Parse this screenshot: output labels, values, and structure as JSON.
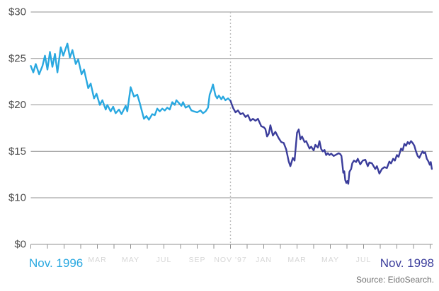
{
  "source": {
    "text": "Source: EidoSearch."
  },
  "colors": {
    "line_before": "#29A8E0",
    "line_after": "#3B3D9B",
    "grid": "#919191",
    "divider": "#bcbcbc",
    "y_label": "#4d4d4d",
    "x_minor_label": "#d6d6d6",
    "source_text": "#6e6e6e",
    "background": "#ffffff"
  },
  "chart_data": {
    "type": "line",
    "title": "",
    "xlabel": "",
    "ylabel": "",
    "grid": true,
    "ylim": [
      0,
      30
    ],
    "y_scale_note": "axis skips $5: equal spacing for $0,$10,$15,$20,$25,$30",
    "y_ticks": [
      {
        "label": "$30",
        "value": 30
      },
      {
        "label": "$25",
        "value": 25
      },
      {
        "label": "$20",
        "value": 20
      },
      {
        "label": "$15",
        "value": 15
      },
      {
        "label": "$10",
        "value": 10
      },
      {
        "label": "$0",
        "value": 0
      }
    ],
    "x_axis": {
      "months_span": 24,
      "tick_every_months": 1,
      "start_label": "Nov. 1996",
      "end_label": "Nov. 1998",
      "minor_labels": [
        {
          "label": "MAR",
          "month": 4
        },
        {
          "label": "MAY",
          "month": 6
        },
        {
          "label": "JUL",
          "month": 8
        },
        {
          "label": "SEP",
          "month": 10
        },
        {
          "label": "NOV '97",
          "month": 12
        },
        {
          "label": "JAN",
          "month": 14
        },
        {
          "label": "MAR",
          "month": 16
        },
        {
          "label": "MAY",
          "month": 18
        },
        {
          "label": "JUL",
          "month": 20
        }
      ]
    },
    "divider": {
      "month": 12,
      "style": "dashed"
    },
    "series": [
      {
        "name": "before_divider",
        "period": "Nov. 1996 - Nov. 1997",
        "color_key": "line_before",
        "points": [
          [
            0.0,
            24.2
          ],
          [
            0.15,
            23.5
          ],
          [
            0.3,
            24.4
          ],
          [
            0.5,
            23.3
          ],
          [
            0.7,
            24.2
          ],
          [
            0.85,
            25.3
          ],
          [
            1.0,
            23.8
          ],
          [
            1.15,
            25.7
          ],
          [
            1.3,
            24.1
          ],
          [
            1.45,
            25.5
          ],
          [
            1.6,
            23.5
          ],
          [
            1.8,
            26.2
          ],
          [
            1.95,
            25.3
          ],
          [
            2.2,
            26.6
          ],
          [
            2.35,
            25.1
          ],
          [
            2.5,
            25.9
          ],
          [
            2.7,
            24.4
          ],
          [
            2.85,
            24.9
          ],
          [
            3.05,
            23.3
          ],
          [
            3.2,
            23.8
          ],
          [
            3.45,
            21.8
          ],
          [
            3.6,
            22.3
          ],
          [
            3.8,
            20.7
          ],
          [
            3.95,
            21.2
          ],
          [
            4.15,
            20.0
          ],
          [
            4.3,
            20.5
          ],
          [
            4.5,
            19.5
          ],
          [
            4.6,
            20.0
          ],
          [
            4.8,
            19.3
          ],
          [
            4.95,
            19.8
          ],
          [
            5.1,
            19.1
          ],
          [
            5.3,
            19.5
          ],
          [
            5.45,
            19.0
          ],
          [
            5.7,
            19.9
          ],
          [
            5.8,
            19.3
          ],
          [
            6.0,
            21.9
          ],
          [
            6.2,
            20.9
          ],
          [
            6.4,
            21.1
          ],
          [
            6.55,
            20.2
          ],
          [
            6.8,
            18.5
          ],
          [
            6.95,
            18.8
          ],
          [
            7.1,
            18.4
          ],
          [
            7.3,
            19.0
          ],
          [
            7.45,
            18.9
          ],
          [
            7.6,
            19.6
          ],
          [
            7.75,
            19.3
          ],
          [
            7.9,
            19.6
          ],
          [
            8.05,
            19.4
          ],
          [
            8.2,
            19.7
          ],
          [
            8.35,
            19.5
          ],
          [
            8.5,
            20.3
          ],
          [
            8.65,
            20.0
          ],
          [
            8.75,
            20.5
          ],
          [
            8.9,
            20.2
          ],
          [
            9.05,
            19.9
          ],
          [
            9.15,
            20.3
          ],
          [
            9.3,
            19.7
          ],
          [
            9.5,
            19.9
          ],
          [
            9.65,
            19.4
          ],
          [
            9.8,
            19.3
          ],
          [
            10.0,
            19.2
          ],
          [
            10.2,
            19.4
          ],
          [
            10.35,
            19.1
          ],
          [
            10.5,
            19.3
          ],
          [
            10.65,
            19.7
          ],
          [
            10.75,
            21.1
          ],
          [
            10.85,
            21.6
          ],
          [
            10.95,
            22.2
          ],
          [
            11.1,
            21.0
          ],
          [
            11.2,
            20.7
          ],
          [
            11.3,
            21.0
          ],
          [
            11.45,
            20.6
          ],
          [
            11.55,
            20.9
          ],
          [
            11.7,
            20.5
          ],
          [
            11.85,
            20.7
          ],
          [
            12.0,
            20.45
          ]
        ]
      },
      {
        "name": "after_divider",
        "period": "Nov. 1997 - Nov. 1998",
        "color_key": "line_after",
        "points": [
          [
            12.0,
            20.45
          ],
          [
            12.15,
            19.7
          ],
          [
            12.3,
            19.2
          ],
          [
            12.45,
            19.4
          ],
          [
            12.6,
            19.0
          ],
          [
            12.75,
            19.1
          ],
          [
            12.9,
            18.7
          ],
          [
            13.05,
            18.9
          ],
          [
            13.2,
            18.3
          ],
          [
            13.35,
            18.5
          ],
          [
            13.5,
            18.3
          ],
          [
            13.65,
            18.5
          ],
          [
            13.85,
            17.7
          ],
          [
            14.0,
            17.6
          ],
          [
            14.1,
            17.4
          ],
          [
            14.2,
            16.6
          ],
          [
            14.3,
            16.9
          ],
          [
            14.4,
            17.8
          ],
          [
            14.55,
            16.7
          ],
          [
            14.7,
            17.1
          ],
          [
            14.9,
            16.4
          ],
          [
            15.05,
            16.0
          ],
          [
            15.2,
            15.9
          ],
          [
            15.35,
            15.2
          ],
          [
            15.5,
            13.9
          ],
          [
            15.6,
            13.4
          ],
          [
            15.75,
            14.3
          ],
          [
            15.85,
            14.0
          ],
          [
            16.0,
            17.0
          ],
          [
            16.1,
            17.35
          ],
          [
            16.2,
            16.3
          ],
          [
            16.3,
            16.6
          ],
          [
            16.45,
            16.0
          ],
          [
            16.55,
            16.1
          ],
          [
            16.75,
            15.3
          ],
          [
            16.85,
            15.5
          ],
          [
            17.0,
            15.1
          ],
          [
            17.1,
            15.7
          ],
          [
            17.25,
            15.4
          ],
          [
            17.35,
            16.1
          ],
          [
            17.45,
            15.25
          ],
          [
            17.55,
            15.0
          ],
          [
            17.65,
            15.15
          ],
          [
            17.75,
            14.6
          ],
          [
            17.85,
            14.8
          ],
          [
            17.95,
            14.6
          ],
          [
            18.05,
            14.75
          ],
          [
            18.2,
            14.5
          ],
          [
            18.35,
            14.65
          ],
          [
            18.5,
            14.8
          ],
          [
            18.6,
            14.7
          ],
          [
            18.67,
            14.5
          ],
          [
            18.72,
            13.7
          ],
          [
            18.78,
            12.7
          ],
          [
            18.84,
            12.85
          ],
          [
            18.9,
            11.9
          ],
          [
            18.96,
            11.6
          ],
          [
            19.02,
            11.8
          ],
          [
            19.08,
            11.5
          ],
          [
            19.15,
            12.8
          ],
          [
            19.25,
            13.1
          ],
          [
            19.32,
            13.7
          ],
          [
            19.42,
            14.0
          ],
          [
            19.55,
            13.85
          ],
          [
            19.65,
            14.2
          ],
          [
            19.8,
            13.6
          ],
          [
            19.95,
            14.0
          ],
          [
            20.1,
            14.1
          ],
          [
            20.25,
            13.4
          ],
          [
            20.35,
            13.8
          ],
          [
            20.5,
            13.7
          ],
          [
            20.7,
            13.1
          ],
          [
            20.8,
            13.4
          ],
          [
            20.95,
            12.6
          ],
          [
            21.1,
            13.1
          ],
          [
            21.25,
            13.3
          ],
          [
            21.4,
            13.2
          ],
          [
            21.55,
            13.9
          ],
          [
            21.65,
            13.7
          ],
          [
            21.78,
            14.2
          ],
          [
            21.88,
            14.0
          ],
          [
            22.0,
            14.6
          ],
          [
            22.1,
            14.4
          ],
          [
            22.25,
            15.3
          ],
          [
            22.35,
            15.1
          ],
          [
            22.45,
            15.8
          ],
          [
            22.55,
            15.6
          ],
          [
            22.65,
            16.0
          ],
          [
            22.75,
            15.8
          ],
          [
            22.85,
            16.1
          ],
          [
            22.95,
            15.9
          ],
          [
            23.05,
            15.6
          ],
          [
            23.15,
            15.0
          ],
          [
            23.25,
            14.5
          ],
          [
            23.35,
            14.3
          ],
          [
            23.45,
            14.7
          ],
          [
            23.55,
            15.0
          ],
          [
            23.62,
            14.8
          ],
          [
            23.7,
            14.9
          ],
          [
            23.8,
            14.2
          ],
          [
            23.9,
            13.9
          ],
          [
            23.98,
            13.55
          ],
          [
            24.04,
            13.85
          ],
          [
            24.1,
            13.1
          ]
        ]
      }
    ]
  }
}
